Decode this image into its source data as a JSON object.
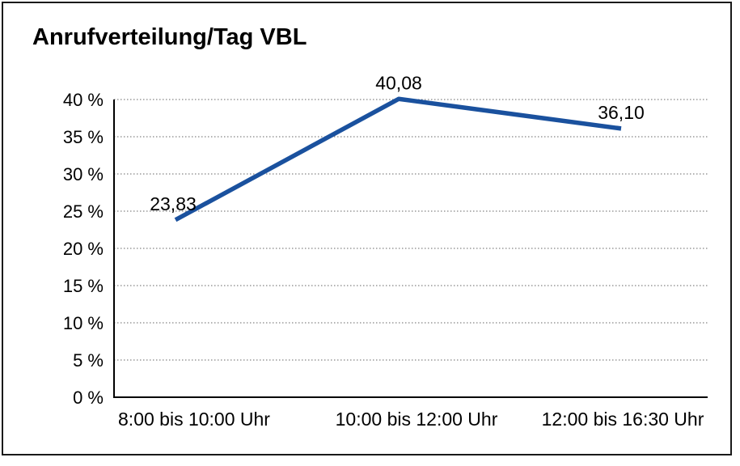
{
  "chart_data": {
    "type": "line",
    "title": "Anrufverteilung/Tag VBL",
    "categories": [
      "8:00 bis 10:00 Uhr",
      "10:00 bis 12:00 Uhr",
      "12:00 bis 16:30 Uhr"
    ],
    "values": [
      23.83,
      40.08,
      36.1
    ],
    "value_labels": [
      "23,83",
      "40,08",
      "36,10"
    ],
    "xlabel": "",
    "ylabel": "",
    "ylim": [
      0,
      40
    ],
    "y_ticks": [
      0,
      5,
      10,
      15,
      20,
      25,
      30,
      35,
      40
    ],
    "y_tick_suffix": " %",
    "grid": "horizontal-dotted",
    "legend_position": "none",
    "colors": {
      "line": "#1a519e",
      "grid": "#666666",
      "axis": "#000000",
      "text": "#000000",
      "frame_border": "#1a1a1a",
      "background": "#ffffff"
    }
  }
}
